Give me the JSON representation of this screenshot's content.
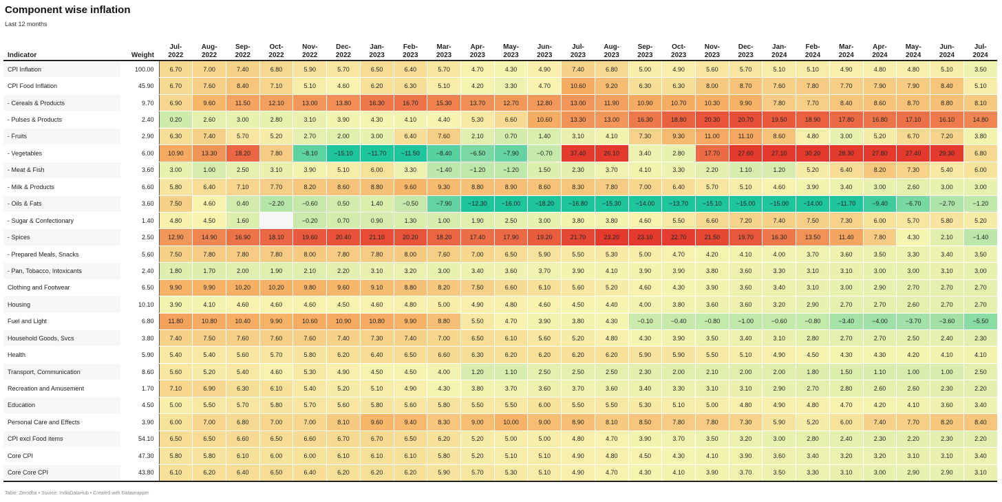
{
  "title": "Component wise inflation",
  "subtitle": "Last 12 months",
  "footer": "Table: Zerodha • Source: IndiaDataHub • Created with Datawrapper",
  "chart_data": {
    "type": "heatmap",
    "columns": [
      "Indicator",
      "Weight"
    ],
    "months": [
      "Jul-\n2022",
      "Aug-\n2022",
      "Sep-\n2022",
      "Oct-\n2022",
      "Nov-\n2022",
      "Dec-\n2022",
      "Jan-\n2023",
      "Feb-\n2023",
      "Mar-\n2023",
      "Apr-\n2023",
      "May-\n2023",
      "Jun-\n2023",
      "Jul-\n2023",
      "Aug-\n2023",
      "Sep-\n2023",
      "Oct-\n2023",
      "Nov-\n2023",
      "Dec-\n2023",
      "Jan-\n2024",
      "Feb-\n2024",
      "Mar-\n2024",
      "Apr-\n2024",
      "May-\n2024",
      "Jun-\n2024",
      "Jul-\n2024"
    ],
    "color_scale": {
      "low": "#1ec49a",
      "mid": "#f7f4b0",
      "high": "#e43a2e",
      "missing": "#f7f7f7"
    },
    "rows": [
      {
        "indicator": "CPI Inflation",
        "weight": "100.00",
        "values": [
          6.7,
          7.0,
          7.4,
          6.8,
          5.9,
          5.7,
          6.5,
          6.4,
          5.7,
          4.7,
          4.3,
          4.9,
          7.4,
          6.8,
          5.0,
          4.9,
          5.6,
          5.7,
          5.1,
          5.1,
          4.9,
          4.8,
          4.8,
          5.1,
          3.5
        ]
      },
      {
        "indicator": "CPI Food Inflation",
        "weight": "45.90",
        "values": [
          6.7,
          7.6,
          8.4,
          7.1,
          5.1,
          4.6,
          6.2,
          6.3,
          5.1,
          4.2,
          3.3,
          4.7,
          10.6,
          9.2,
          6.3,
          6.3,
          8.0,
          8.7,
          7.6,
          7.8,
          7.7,
          7.9,
          7.9,
          8.4,
          5.1
        ]
      },
      {
        "indicator": "- Cereals & Products",
        "weight": "9.70",
        "values": [
          6.9,
          9.6,
          11.5,
          12.1,
          13.0,
          13.8,
          16.3,
          16.7,
          15.3,
          13.7,
          12.7,
          12.8,
          13.0,
          11.9,
          10.9,
          10.7,
          10.3,
          9.9,
          7.8,
          7.7,
          8.4,
          8.6,
          8.7,
          8.8,
          8.1
        ]
      },
      {
        "indicator": "- Pulses & Products",
        "weight": "2.40",
        "values": [
          0.2,
          2.6,
          3.0,
          2.8,
          3.1,
          3.9,
          4.3,
          4.1,
          4.4,
          5.3,
          6.6,
          10.6,
          13.3,
          13.0,
          16.3,
          18.8,
          20.3,
          20.7,
          19.5,
          18.9,
          17.8,
          16.8,
          17.1,
          16.1,
          14.8
        ]
      },
      {
        "indicator": "- Fruits",
        "weight": "2.90",
        "values": [
          6.3,
          7.4,
          5.7,
          5.2,
          2.7,
          2.0,
          3.0,
          6.4,
          7.6,
          2.1,
          0.7,
          1.4,
          3.1,
          4.1,
          7.3,
          9.3,
          11.0,
          11.1,
          8.6,
          4.8,
          3.0,
          5.2,
          6.7,
          7.2,
          3.8
        ]
      },
      {
        "indicator": "- Vegetables",
        "weight": "6.00",
        "values": [
          10.9,
          13.3,
          18.2,
          7.8,
          -8.1,
          -15.1,
          -11.7,
          -11.5,
          -8.4,
          -6.5,
          -7.9,
          -0.7,
          37.4,
          26.1,
          3.4,
          2.8,
          17.7,
          27.6,
          27.1,
          30.2,
          28.3,
          27.8,
          27.4,
          29.3,
          6.8
        ]
      },
      {
        "indicator": "- Meat & Fish",
        "weight": "3.60",
        "values": [
          3.0,
          1.0,
          2.5,
          3.1,
          3.9,
          5.1,
          6.0,
          3.3,
          -1.4,
          -1.2,
          -1.2,
          1.5,
          2.3,
          3.7,
          4.1,
          3.3,
          2.2,
          1.1,
          1.2,
          5.2,
          6.4,
          8.2,
          7.3,
          5.4,
          6.0
        ]
      },
      {
        "indicator": "- Milk & Products",
        "weight": "6.60",
        "values": [
          5.8,
          6.4,
          7.1,
          7.7,
          8.2,
          8.6,
          8.8,
          9.6,
          9.3,
          8.8,
          8.9,
          8.6,
          8.3,
          7.8,
          7.0,
          6.4,
          5.7,
          5.1,
          4.6,
          3.9,
          3.4,
          3.0,
          2.6,
          3.0,
          3.0
        ]
      },
      {
        "indicator": "- Oils & Fats",
        "weight": "3.60",
        "values": [
          7.5,
          4.6,
          0.4,
          -2.2,
          -0.6,
          0.5,
          1.4,
          -0.5,
          -7.9,
          -12.3,
          -16.0,
          -18.2,
          -16.8,
          -15.3,
          -14.0,
          -13.7,
          -15.1,
          -15.0,
          -15.0,
          -14.0,
          -11.7,
          -9.4,
          -6.7,
          -2.7,
          -1.2
        ]
      },
      {
        "indicator": "- Sugar & Confectionary",
        "weight": "1.40",
        "values": [
          4.8,
          4.5,
          1.6,
          null,
          -0.2,
          0.7,
          0.9,
          1.3,
          1.0,
          1.9,
          2.5,
          3.0,
          3.8,
          3.8,
          4.6,
          5.5,
          6.6,
          7.2,
          7.4,
          7.5,
          7.3,
          6.0,
          5.7,
          5.8,
          5.2
        ]
      },
      {
        "indicator": "- Spices",
        "weight": "2.50",
        "values": [
          12.9,
          14.9,
          16.9,
          18.1,
          19.6,
          20.4,
          21.1,
          20.2,
          18.2,
          17.4,
          17.9,
          19.2,
          21.7,
          23.2,
          23.1,
          22.7,
          21.5,
          19.7,
          16.3,
          13.5,
          11.4,
          7.8,
          4.3,
          2.1,
          -1.4
        ]
      },
      {
        "indicator": "- Prepared Meals, Snacks",
        "weight": "5.60",
        "values": [
          7.5,
          7.8,
          7.8,
          7.8,
          8.0,
          7.8,
          7.8,
          8.0,
          7.6,
          7.0,
          6.5,
          5.9,
          5.5,
          5.3,
          5.0,
          4.7,
          4.2,
          4.1,
          4.0,
          3.7,
          3.6,
          3.5,
          3.3,
          3.4,
          3.5
        ]
      },
      {
        "indicator": "- Pan, Tobacco, Intoxicants",
        "weight": "2.40",
        "values": [
          1.8,
          1.7,
          2.0,
          1.9,
          2.1,
          2.2,
          3.1,
          3.2,
          3.0,
          3.4,
          3.6,
          3.7,
          3.9,
          4.1,
          3.9,
          3.9,
          3.8,
          3.6,
          3.3,
          3.1,
          3.1,
          3.0,
          3.0,
          3.1,
          3.0
        ]
      },
      {
        "indicator": "Clothing and Footwear",
        "weight": "6.50",
        "values": [
          9.9,
          9.9,
          10.2,
          10.2,
          9.8,
          9.6,
          9.1,
          8.8,
          8.2,
          7.5,
          6.6,
          6.1,
          5.6,
          5.2,
          4.6,
          4.3,
          3.9,
          3.6,
          3.4,
          3.1,
          3.0,
          2.9,
          2.7,
          2.7,
          2.7
        ]
      },
      {
        "indicator": "Housing",
        "weight": "10.10",
        "values": [
          3.9,
          4.1,
          4.6,
          4.6,
          4.6,
          4.5,
          4.6,
          4.8,
          5.0,
          4.9,
          4.8,
          4.6,
          4.5,
          4.4,
          4.0,
          3.8,
          3.6,
          3.6,
          3.2,
          2.9,
          2.7,
          2.7,
          2.6,
          2.7,
          2.7
        ]
      },
      {
        "indicator": "Fuel and Light",
        "weight": "6.80",
        "values": [
          11.8,
          10.8,
          10.4,
          9.9,
          10.6,
          10.9,
          10.8,
          9.9,
          8.8,
          5.5,
          4.7,
          3.9,
          3.8,
          4.3,
          -0.1,
          -0.4,
          -0.8,
          -1.0,
          -0.6,
          -0.8,
          -3.4,
          -4.0,
          -3.7,
          -3.6,
          -5.5
        ]
      },
      {
        "indicator": "Household Goods, Svcs",
        "weight": "3.80",
        "values": [
          7.4,
          7.5,
          7.6,
          7.6,
          7.6,
          7.4,
          7.3,
          7.4,
          7.0,
          6.5,
          6.1,
          5.6,
          5.2,
          4.8,
          4.3,
          3.9,
          3.5,
          3.4,
          3.1,
          2.8,
          2.7,
          2.7,
          2.5,
          2.4,
          2.3
        ]
      },
      {
        "indicator": "Health",
        "weight": "5.90",
        "values": [
          5.4,
          5.4,
          5.6,
          5.7,
          5.8,
          6.2,
          6.4,
          6.5,
          6.6,
          6.3,
          6.2,
          6.2,
          6.2,
          6.2,
          5.9,
          5.9,
          5.5,
          5.1,
          4.9,
          4.5,
          4.3,
          4.3,
          4.2,
          4.1,
          4.1
        ]
      },
      {
        "indicator": "Transport, Communication",
        "weight": "8.60",
        "values": [
          5.6,
          5.2,
          5.4,
          4.6,
          5.3,
          4.9,
          4.5,
          4.5,
          4.0,
          1.2,
          1.1,
          2.5,
          2.5,
          2.5,
          2.3,
          2.0,
          2.1,
          2.0,
          2.0,
          1.8,
          1.5,
          1.1,
          1.0,
          1.0,
          2.5
        ]
      },
      {
        "indicator": "Recreation and Amusement",
        "weight": "1.70",
        "values": [
          7.1,
          6.9,
          6.3,
          6.1,
          5.4,
          5.2,
          5.1,
          4.9,
          4.3,
          3.8,
          3.7,
          3.6,
          3.7,
          3.6,
          3.4,
          3.3,
          3.1,
          3.1,
          2.9,
          2.7,
          2.8,
          2.6,
          2.6,
          2.3,
          2.2
        ]
      },
      {
        "indicator": "Education",
        "weight": "4.50",
        "values": [
          5.0,
          5.5,
          5.7,
          5.8,
          5.7,
          5.6,
          5.8,
          5.6,
          5.8,
          5.5,
          5.5,
          6.0,
          5.5,
          5.5,
          5.3,
          5.1,
          5.0,
          4.8,
          4.9,
          4.8,
          4.7,
          4.2,
          4.1,
          3.6,
          3.4
        ]
      },
      {
        "indicator": "Personal Care and Effects",
        "weight": "3.90",
        "values": [
          6.0,
          7.0,
          6.8,
          7.0,
          7.0,
          8.1,
          9.6,
          9.4,
          8.3,
          9.0,
          10.0,
          9.0,
          8.9,
          8.1,
          8.5,
          7.8,
          7.8,
          7.3,
          5.9,
          5.2,
          6.0,
          7.4,
          7.7,
          8.2,
          8.4
        ]
      },
      {
        "indicator": "CPI excl Food items",
        "weight": "54.10",
        "values": [
          6.5,
          6.5,
          6.6,
          6.5,
          6.6,
          6.7,
          6.7,
          6.5,
          6.2,
          5.2,
          5.0,
          5.0,
          4.8,
          4.7,
          3.9,
          3.7,
          3.5,
          3.2,
          3.0,
          2.8,
          2.4,
          2.3,
          2.2,
          2.3,
          2.2
        ]
      },
      {
        "indicator": "Core CPI",
        "weight": "47.30",
        "values": [
          5.8,
          5.8,
          6.1,
          6.0,
          6.0,
          6.1,
          6.1,
          6.1,
          5.8,
          5.2,
          5.1,
          5.1,
          4.9,
          4.8,
          4.5,
          4.3,
          4.1,
          3.9,
          3.6,
          3.4,
          3.2,
          3.2,
          3.1,
          3.1,
          3.4
        ]
      },
      {
        "indicator": "Core Core CPI",
        "weight": "43.80",
        "values": [
          6.1,
          6.2,
          6.4,
          6.5,
          6.4,
          6.2,
          6.2,
          6.2,
          5.9,
          5.7,
          5.3,
          5.1,
          4.9,
          4.7,
          4.3,
          4.1,
          3.9,
          3.7,
          3.5,
          3.3,
          3.1,
          3.0,
          2.9,
          2.9,
          3.1
        ]
      }
    ]
  }
}
